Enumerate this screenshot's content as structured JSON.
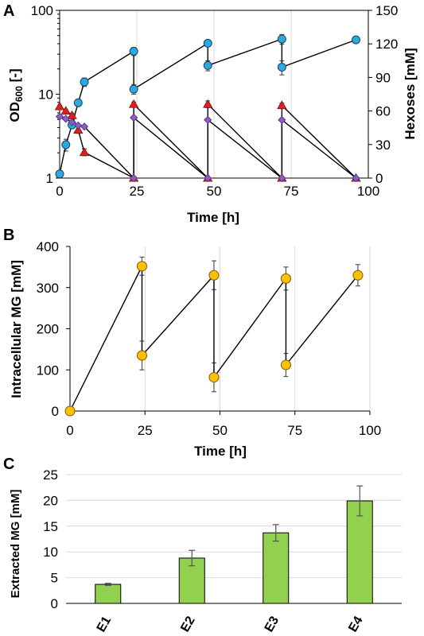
{
  "chart_data": [
    {
      "panel": "A",
      "type": "line",
      "xlabel": "Time [h]",
      "ylabel_left_main": "OD",
      "ylabel_left_sub": "600",
      "ylabel_left_suffix": " [-]",
      "ylabel_right": "Hexoses [mM]",
      "xlim": [
        0,
        100
      ],
      "ylim_left": [
        1,
        100
      ],
      "ylim_right": [
        0,
        150
      ],
      "y_left_scale": "log",
      "x_ticks": [
        "0",
        "25",
        "50",
        "75",
        "100"
      ],
      "y_left_ticks": [
        "1",
        "10",
        "100"
      ],
      "y_right_ticks": [
        "0",
        "30",
        "60",
        "90",
        "120",
        "150"
      ],
      "grid": "vertical",
      "series": [
        {
          "axis": "left",
          "color": "#29abe2",
          "marker": "circle",
          "x": [
            0,
            2,
            4,
            6,
            8,
            24,
            24,
            48,
            48,
            72,
            72,
            96
          ],
          "y": [
            1.12,
            2.5,
            4.3,
            7.9,
            14,
            32.5,
            11.5,
            40.5,
            22,
            45.5,
            21,
            44.5
          ],
          "err": [
            0.05,
            0.4,
            0.4,
            0.6,
            1.6,
            3.5,
            1.5,
            2,
            3,
            6,
            4,
            3
          ]
        },
        {
          "axis": "right",
          "color": "#e02020",
          "marker": "triangle",
          "x": [
            0,
            2,
            4,
            6,
            8,
            24,
            24,
            48,
            48,
            72,
            72,
            96
          ],
          "y": [
            64,
            60,
            56,
            43,
            23,
            0,
            66,
            0,
            66,
            0,
            65,
            0
          ],
          "err": [
            1,
            1,
            2,
            3,
            3,
            0,
            2,
            0,
            3,
            0,
            2,
            0
          ]
        },
        {
          "axis": "right",
          "color": "#8f5bc6",
          "marker": "diamond",
          "x": [
            0,
            2,
            4,
            6,
            8,
            24,
            24,
            48,
            48,
            72,
            72,
            96
          ],
          "y": [
            55,
            53,
            50,
            47,
            46,
            0,
            54,
            0,
            52,
            0,
            52,
            0
          ],
          "err": [
            1,
            1,
            1,
            1,
            1,
            0,
            1,
            0,
            1,
            0,
            1,
            0
          ]
        }
      ]
    },
    {
      "panel": "B",
      "type": "line",
      "xlabel": "Time [h]",
      "ylabel": "Intracellular MG [mM]",
      "xlim": [
        0,
        100
      ],
      "ylim": [
        0,
        400
      ],
      "x_ticks": [
        "0",
        "25",
        "50",
        "75",
        "100"
      ],
      "y_ticks": [
        "0",
        "100",
        "200",
        "300",
        "400"
      ],
      "grid": "vertical",
      "series": [
        {
          "color": "#ffc000",
          "marker": "circle",
          "x": [
            0,
            24,
            24,
            48,
            48,
            72,
            72,
            96
          ],
          "y": [
            0,
            352,
            135,
            330,
            82,
            322,
            112,
            330
          ],
          "err": [
            0,
            22,
            35,
            35,
            35,
            28,
            28,
            26
          ]
        }
      ]
    },
    {
      "panel": "C",
      "type": "bar",
      "ylabel": "Extracted MG [mM]",
      "categories": [
        "E1",
        "E2",
        "E3",
        "E4"
      ],
      "values": [
        3.7,
        8.8,
        13.7,
        19.9
      ],
      "err": [
        0.2,
        1.5,
        1.6,
        2.9
      ],
      "ylim": [
        0,
        25
      ],
      "y_ticks": [
        "0",
        "5",
        "10",
        "15",
        "20",
        "25"
      ],
      "grid": "horizontal",
      "color": "#92d050"
    }
  ]
}
